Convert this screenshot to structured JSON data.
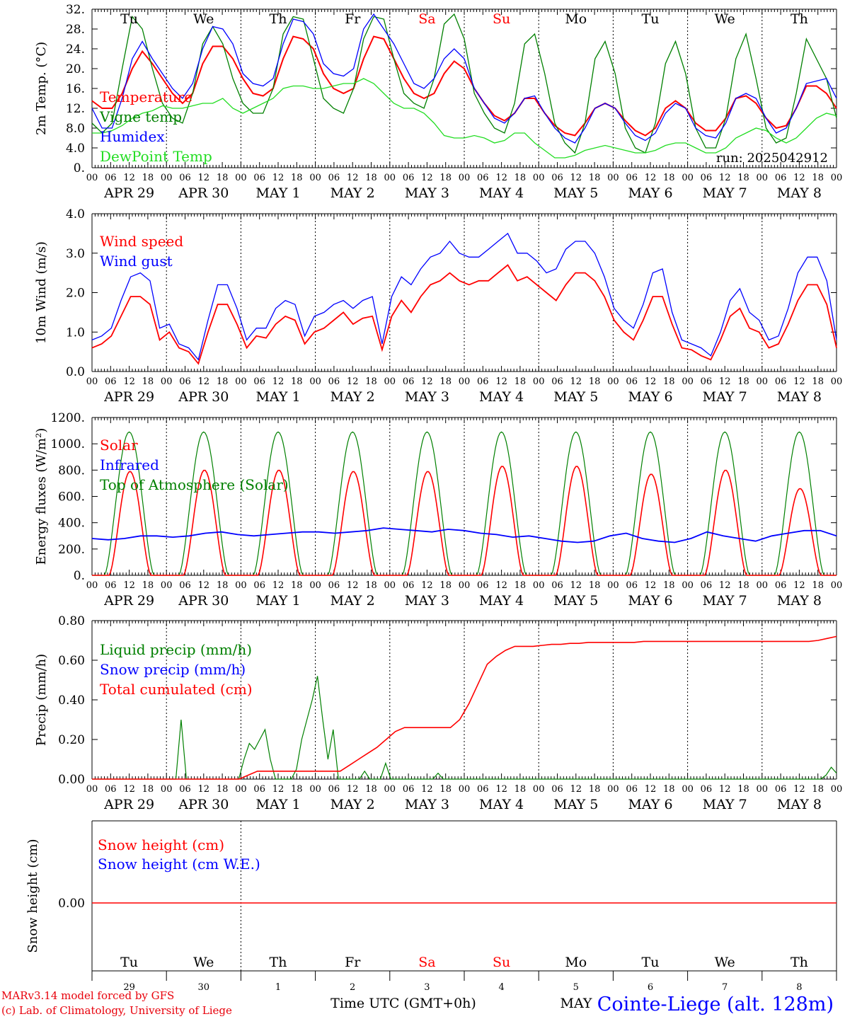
{
  "days": [
    "Tu",
    "We",
    "Th",
    "Fr",
    "Sa",
    "Su",
    "Mo",
    "Tu",
    "We",
    "Th"
  ],
  "weekend_days": [
    "Sa",
    "Su"
  ],
  "date_labels": [
    "APR 29",
    "APR 30",
    "MAY  1",
    "MAY  2",
    "MAY  3",
    "MAY  4",
    "MAY  5",
    "MAY  6",
    "MAY  7",
    "MAY  8"
  ],
  "hour_ticks": [
    "00",
    "06",
    "12",
    "18"
  ],
  "bottom_day_numbers": [
    "29",
    "30",
    "1",
    "2",
    "3",
    "4",
    "5",
    "6",
    "7",
    "8"
  ],
  "x_axis_label": "Time UTC (GMT+0h)",
  "x_axis_month_label": "MAY",
  "station_label": "Cointe-Liege (alt. 128m)",
  "credits": [
    "MARv3.14 model forced by GFS",
    "(c) Lab. of Climatology, University of Liege"
  ],
  "colors": {
    "red": "#ff0000",
    "green": "#008000",
    "blue": "#0000ff",
    "lightgreen": "#22dd22",
    "axis": "#000000"
  },
  "chart_data": [
    {
      "type": "line",
      "ylabel": "2m Temp. (°C)",
      "ylim": [
        0,
        32
      ],
      "yticks": [
        "0.",
        "4.0",
        "8.0",
        "12.",
        "16.",
        "20.",
        "24.",
        "28.",
        "32."
      ],
      "annotation": "run: 2025042912",
      "x_hours_step": 6,
      "series": [
        {
          "name": "Temperature",
          "color": "#ff0000",
          "values": [
            13.5,
            12,
            12,
            15,
            20,
            23.5,
            21,
            18,
            15,
            13,
            15,
            21,
            24.5,
            24.5,
            22,
            18,
            15,
            14.5,
            16,
            22,
            26.5,
            26,
            24,
            19,
            16,
            15,
            16,
            22,
            26.5,
            26,
            22,
            18,
            15,
            14,
            15,
            19,
            21.5,
            20,
            16,
            13,
            10.5,
            9.5,
            11,
            14,
            14,
            11,
            8.5,
            7,
            6.5,
            9,
            12,
            13,
            12,
            9.5,
            7.5,
            6.5,
            8,
            12,
            13.5,
            12,
            9,
            7.5,
            7.5,
            10,
            14,
            14.5,
            13,
            10,
            8,
            8.5,
            12,
            16.5,
            16.5,
            15,
            12
          ]
        },
        {
          "name": "Vigne temp",
          "color": "#008000",
          "values": [
            9,
            7,
            9,
            20,
            30.5,
            28,
            20,
            13,
            10,
            9,
            15,
            25,
            28.5,
            25,
            18,
            13,
            11,
            11,
            16,
            27,
            30.5,
            30,
            22,
            14,
            12,
            11,
            16,
            26,
            30.5,
            30,
            22,
            15,
            13,
            12,
            18,
            29,
            31,
            26,
            15,
            11,
            8,
            7,
            13,
            25,
            27,
            19,
            9,
            5,
            3,
            9,
            22,
            25.5,
            19,
            8,
            4,
            3,
            9,
            21,
            25.5,
            19,
            8,
            4,
            4,
            10,
            22,
            27,
            18,
            8,
            5,
            6,
            15,
            26,
            22,
            18,
            10
          ]
        },
        {
          "name": "Humidex",
          "color": "#0000ff",
          "values": [
            12,
            8,
            8,
            14,
            22,
            25.5,
            22,
            19,
            16,
            14,
            17,
            24,
            28.5,
            28,
            25,
            19,
            17,
            16.5,
            18,
            25,
            30,
            29.5,
            27,
            21,
            19,
            18.5,
            20,
            28,
            31,
            28,
            25,
            21,
            17,
            16,
            18,
            22,
            24,
            22,
            16,
            13,
            10,
            9,
            11,
            14,
            14.5,
            11,
            8,
            6,
            5,
            8,
            12,
            13,
            12,
            9,
            6.5,
            5.5,
            7,
            11,
            13,
            12,
            8,
            6.5,
            6,
            9,
            14,
            15,
            14,
            10,
            7,
            8,
            12,
            17,
            17.5,
            18,
            14
          ]
        },
        {
          "name": "DewPoint Temp",
          "color": "#22dd22",
          "values": [
            7,
            7,
            7.5,
            8.5,
            10,
            11,
            11.5,
            12.5,
            12,
            12,
            12.5,
            13,
            13,
            14,
            12,
            11,
            12,
            13,
            14,
            16,
            16.5,
            16.5,
            16,
            16,
            16.5,
            17,
            17,
            18,
            17,
            15,
            13,
            12,
            12,
            11,
            9,
            6.5,
            6,
            6,
            6.5,
            6,
            5,
            5.5,
            7,
            7,
            5,
            3.5,
            2,
            2,
            2.5,
            3.5,
            4,
            4.5,
            4,
            3.5,
            3,
            3,
            3.5,
            4.5,
            5,
            5,
            4,
            3,
            3,
            4,
            6,
            7,
            8,
            7.5,
            6,
            5,
            6,
            8,
            10,
            11,
            10.5
          ]
        }
      ]
    },
    {
      "type": "line",
      "ylabel": "10m Wind (m/s)",
      "ylim": [
        0,
        4
      ],
      "yticks": [
        "0.0",
        "1.0",
        "2.0",
        "3.0",
        "4.0"
      ],
      "x_hours_step": 6,
      "series": [
        {
          "name": "Wind speed",
          "color": "#ff0000",
          "values": [
            0.6,
            0.7,
            0.9,
            1.4,
            1.9,
            1.9,
            1.7,
            0.8,
            1.0,
            0.6,
            0.5,
            0.2,
            1.0,
            1.7,
            1.7,
            1.2,
            0.6,
            0.9,
            0.85,
            1.2,
            1.4,
            1.3,
            0.7,
            1.0,
            1.1,
            1.3,
            1.5,
            1.2,
            1.35,
            1.4,
            0.55,
            1.4,
            1.8,
            1.5,
            1.9,
            2.2,
            2.3,
            2.5,
            2.3,
            2.2,
            2.3,
            2.3,
            2.5,
            2.7,
            2.3,
            2.4,
            2.2,
            2.0,
            1.8,
            2.2,
            2.5,
            2.5,
            2.3,
            1.9,
            1.3,
            1.0,
            0.8,
            1.3,
            1.9,
            1.9,
            1.2,
            0.6,
            0.55,
            0.4,
            0.3,
            0.8,
            1.4,
            1.6,
            1.1,
            1.0,
            0.6,
            0.7,
            1.2,
            1.8,
            2.2,
            2.2,
            1.7,
            0.6
          ]
        },
        {
          "name": "Wind gust",
          "color": "#0000ff",
          "values": [
            0.8,
            0.9,
            1.1,
            1.8,
            2.4,
            2.5,
            2.3,
            1.1,
            1.2,
            0.7,
            0.6,
            0.3,
            1.3,
            2.2,
            2.2,
            1.6,
            0.8,
            1.1,
            1.1,
            1.6,
            1.8,
            1.7,
            0.9,
            1.4,
            1.5,
            1.7,
            1.8,
            1.6,
            1.8,
            1.9,
            0.7,
            1.9,
            2.4,
            2.2,
            2.6,
            2.9,
            3.0,
            3.3,
            3.0,
            2.9,
            2.9,
            3.1,
            3.3,
            3.5,
            3.0,
            3.0,
            2.8,
            2.5,
            2.6,
            3.1,
            3.3,
            3.3,
            3.0,
            2.4,
            1.6,
            1.3,
            1.1,
            1.7,
            2.5,
            2.6,
            1.5,
            0.8,
            0.7,
            0.6,
            0.4,
            1.0,
            1.8,
            2.1,
            1.5,
            1.3,
            0.8,
            0.9,
            1.6,
            2.5,
            2.9,
            2.9,
            2.3,
            0.8
          ]
        }
      ]
    },
    {
      "type": "line",
      "ylabel": "Energy fluxes (W/m²)",
      "ylim": [
        0,
        1200
      ],
      "yticks": [
        "0.",
        "200.",
        "400.",
        "600.",
        "800.",
        "1000.",
        "1200."
      ],
      "x_hours_step": 1,
      "solar_peaks": [
        790,
        800,
        800,
        790,
        790,
        830,
        830,
        770,
        800,
        660
      ],
      "toa_peak": 1090,
      "series": [
        {
          "name": "Solar",
          "color": "#ff0000"
        },
        {
          "name": "Infrared",
          "color": "#0000ff",
          "values": [
            280,
            270,
            280,
            300,
            300,
            290,
            300,
            320,
            330,
            310,
            300,
            310,
            320,
            330,
            330,
            320,
            330,
            340,
            360,
            350,
            340,
            330,
            350,
            340,
            320,
            310,
            290,
            300,
            280,
            260,
            250,
            260,
            300,
            320,
            280,
            260,
            250,
            280,
            330,
            300,
            280,
            260,
            300,
            320,
            340,
            340,
            300
          ]
        },
        {
          "name": "Top of Atmosphere (Solar)",
          "color": "#008000"
        }
      ]
    },
    {
      "type": "line",
      "ylabel": "Precip (mm/h)",
      "ylim": [
        0,
        0.8
      ],
      "yticks": [
        "0.00",
        "0.20",
        "0.40",
        "0.60",
        "0.80"
      ],
      "x_hours_step": 3,
      "series": [
        {
          "name": "Liquid precip (mm/h)",
          "color": "#008000",
          "values": [
            0,
            0,
            0,
            0,
            0,
            0,
            0,
            0,
            0,
            0,
            0,
            0,
            0,
            0,
            0,
            0,
            0,
            0.3,
            0,
            0,
            0,
            0,
            0,
            0,
            0,
            0,
            0,
            0,
            0,
            0.1,
            0.18,
            0.15,
            0.2,
            0.25,
            0.1,
            0,
            0,
            0,
            0,
            0.05,
            0.2,
            0.3,
            0.4,
            0.52,
            0.3,
            0.1,
            0.25,
            0,
            0,
            0,
            0,
            0,
            0.04,
            0,
            0,
            0,
            0.08,
            0,
            0,
            0,
            0,
            0,
            0,
            0,
            0,
            0,
            0.03,
            0,
            0,
            0,
            0,
            0,
            0,
            0,
            0,
            0,
            0,
            0,
            0,
            0,
            0,
            0,
            0,
            0,
            0,
            0,
            0,
            0,
            0,
            0,
            0,
            0,
            0,
            0,
            0,
            0,
            0,
            0,
            0,
            0,
            0,
            0,
            0,
            0,
            0,
            0,
            0,
            0,
            0,
            0,
            0,
            0,
            0,
            0,
            0,
            0,
            0,
            0,
            0,
            0,
            0,
            0,
            0,
            0,
            0,
            0,
            0,
            0,
            0,
            0,
            0,
            0,
            0,
            0,
            0,
            0,
            0,
            0,
            0,
            0,
            0.02,
            0.06,
            0.03
          ]
        },
        {
          "name": "Snow precip (mm/h)",
          "color": "#0000ff"
        },
        {
          "name": "Total cumulated (cm)",
          "color": "#ff0000",
          "values": [
            0,
            0,
            0,
            0,
            0,
            0,
            0,
            0,
            0,
            0,
            0,
            0,
            0,
            0,
            0,
            0,
            0,
            0.02,
            0.04,
            0.04,
            0.04,
            0.04,
            0.04,
            0.04,
            0.04,
            0.04,
            0.04,
            0.04,
            0.07,
            0.1,
            0.13,
            0.16,
            0.2,
            0.24,
            0.26,
            0.26,
            0.26,
            0.26,
            0.26,
            0.26,
            0.3,
            0.38,
            0.48,
            0.58,
            0.62,
            0.65,
            0.67,
            0.67,
            0.67,
            0.675,
            0.68,
            0.68,
            0.685,
            0.685,
            0.69,
            0.69,
            0.69,
            0.69,
            0.69,
            0.69,
            0.695,
            0.695,
            0.695,
            0.695,
            0.695,
            0.695,
            0.695,
            0.695,
            0.695,
            0.695,
            0.695,
            0.695,
            0.695,
            0.695,
            0.695,
            0.695,
            0.695,
            0.695,
            0.695,
            0.7,
            0.71,
            0.72
          ]
        }
      ]
    },
    {
      "type": "line",
      "ylabel": "Snow height (cm)",
      "ytick": "0.00",
      "series": [
        {
          "name": "Snow height (cm)",
          "color": "#ff0000",
          "values": [
            0,
            0
          ]
        },
        {
          "name": "Snow height (cm W.E.)",
          "color": "#0000ff"
        }
      ]
    }
  ]
}
